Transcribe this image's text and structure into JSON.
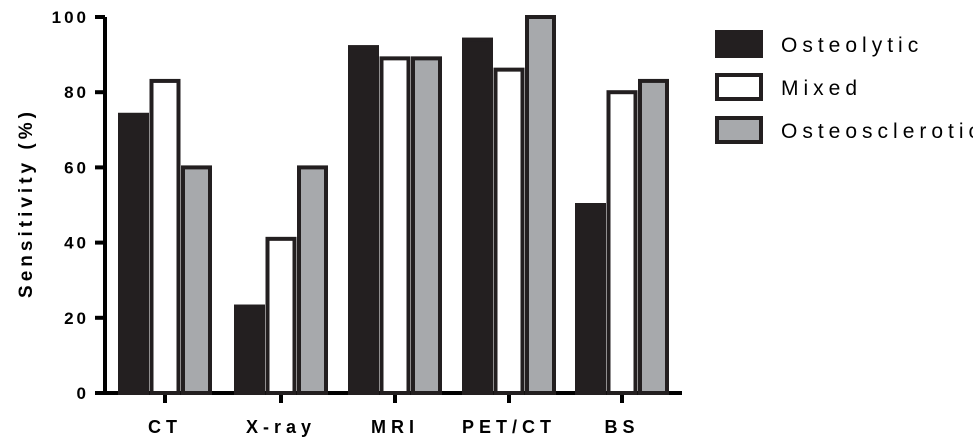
{
  "chart_data": {
    "type": "bar",
    "title": "",
    "xlabel": "",
    "ylabel": "Sensitivity (%)",
    "ylim": [
      0,
      100
    ],
    "yticks": [
      "0",
      "20",
      "40",
      "60",
      "80",
      "100"
    ],
    "categories": [
      "CT",
      "X-ray",
      "MRI",
      "PET/CT",
      "BS"
    ],
    "series": [
      {
        "name": "Osteolytic",
        "values": [
          74,
          23,
          92,
          94,
          50
        ],
        "fill": "#231f20"
      },
      {
        "name": "Mixed",
        "values": [
          83,
          41,
          89,
          86,
          80
        ],
        "fill": "#ffffff"
      },
      {
        "name": "Osteosclerotic",
        "values": [
          60,
          60,
          89,
          100,
          83
        ],
        "fill": "#a7a9ac"
      }
    ],
    "legend_position": "top-right",
    "grid": false
  }
}
